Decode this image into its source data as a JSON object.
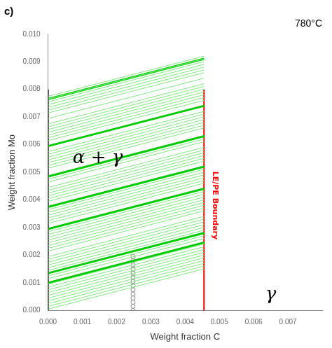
{
  "chart_data": {
    "type": "line",
    "title": "c)",
    "subtitle": "780°C",
    "x_label": "Weight fraction C",
    "y_label": "Weight fraction Mo",
    "xlim": [
      0.0,
      0.008
    ],
    "ylim": [
      0.0,
      0.01
    ],
    "xticks": [
      {
        "value": 0,
        "label": "0.000"
      },
      0.001,
      0.002,
      0.003,
      0.004,
      0.005,
      0.006,
      0.007
    ],
    "yticks": [
      {
        "value": 0,
        "label": "0.000"
      },
      0.001,
      0.002,
      0.003,
      0.004,
      0.005,
      0.006,
      0.007,
      0.008,
      0.009,
      {
        "value": 0.01,
        "label": "0.010"
      }
    ],
    "grid": false,
    "background_color": "#ffffff",
    "annotations": [
      {
        "text": "α + γ",
        "x": 0.00145,
        "y": 0.0055
      },
      {
        "text": "γ",
        "x": 0.0065,
        "y": 0.00055
      },
      {
        "text": "LE/PE Boundary",
        "x": 0.00475,
        "y": 0.0038,
        "color": "#FF0000"
      }
    ],
    "series": [
      {
        "type": "line",
        "line_style": "thin",
        "color": "#80E880",
        "x": [
          0.0,
          0.00455
        ],
        "values": [
          5e-05,
          0.001506
        ]
      },
      {
        "type": "line",
        "line_style": "thin",
        "color": "#80E880",
        "x": [
          0.0,
          0.00455
        ],
        "values": [
          0.00015,
          0.001606
        ]
      },
      {
        "type": "line",
        "line_style": "thin",
        "color": "#80E880",
        "x": [
          0.0,
          0.00455
        ],
        "values": [
          0.00025,
          0.001706
        ]
      },
      {
        "type": "line",
        "line_style": "thin",
        "color": "#80E880",
        "x": [
          0.0,
          0.00455
        ],
        "values": [
          0.00035,
          0.001806
        ]
      },
      {
        "type": "line",
        "line_style": "thin",
        "color": "#80E880",
        "x": [
          0.0,
          0.00455
        ],
        "values": [
          0.00045,
          0.001906
        ]
      },
      {
        "type": "line",
        "line_style": "thin",
        "color": "#80E880",
        "x": [
          0.0,
          0.00455
        ],
        "values": [
          0.00055,
          0.002006
        ]
      },
      {
        "type": "line",
        "line_style": "thin",
        "color": "#80E880",
        "x": [
          0.0,
          0.00455
        ],
        "values": [
          0.00065,
          0.002106
        ]
      },
      {
        "type": "line",
        "line_style": "thin",
        "color": "#80E880",
        "x": [
          0.0,
          0.00455
        ],
        "values": [
          0.00075,
          0.002206
        ]
      },
      {
        "type": "line",
        "line_style": "thin",
        "color": "#80E880",
        "x": [
          0.0,
          0.00455
        ],
        "values": [
          0.00085,
          0.002306
        ]
      },
      {
        "type": "line",
        "line_style": "thin",
        "color": "#80E880",
        "x": [
          0.0,
          0.00455
        ],
        "values": [
          0.00095,
          0.002406
        ]
      },
      {
        "type": "line",
        "line_style": "thin",
        "color": "#80E880",
        "x": [
          0.0,
          0.00455
        ],
        "values": [
          0.00115,
          0.002606
        ]
      },
      {
        "type": "line",
        "line_style": "thin",
        "color": "#80E880",
        "x": [
          0.0,
          0.00455
        ],
        "values": [
          0.00125,
          0.002706
        ]
      },
      {
        "type": "line",
        "line_style": "thin",
        "color": "#80E880",
        "x": [
          0.0,
          0.00455
        ],
        "values": [
          0.00145,
          0.002906
        ]
      },
      {
        "type": "line",
        "line_style": "thin",
        "color": "#80E880",
        "x": [
          0.0,
          0.00455
        ],
        "values": [
          0.00155,
          0.003006
        ]
      },
      {
        "type": "line",
        "line_style": "thin",
        "color": "#80E880",
        "x": [
          0.0,
          0.00455
        ],
        "values": [
          0.00165,
          0.003106
        ]
      },
      {
        "type": "line",
        "line_style": "thin",
        "color": "#80E880",
        "x": [
          0.0,
          0.00455
        ],
        "values": [
          0.00175,
          0.003206
        ]
      },
      {
        "type": "line",
        "line_style": "thin",
        "color": "#80E880",
        "x": [
          0.0,
          0.00455
        ],
        "values": [
          0.00185,
          0.003306
        ]
      },
      {
        "type": "line",
        "line_style": "thin",
        "color": "#80E880",
        "x": [
          0.0,
          0.00455
        ],
        "values": [
          0.00195,
          0.003406
        ]
      },
      {
        "type": "line",
        "line_style": "thin",
        "color": "#80E880",
        "x": [
          0.0,
          0.00455
        ],
        "values": [
          0.00215,
          0.003606
        ]
      },
      {
        "type": "line",
        "line_style": "thin",
        "color": "#80E880",
        "x": [
          0.0,
          0.00455
        ],
        "values": [
          0.00225,
          0.003706
        ]
      },
      {
        "type": "line",
        "line_style": "thin",
        "color": "#80E880",
        "x": [
          0.0,
          0.00455
        ],
        "values": [
          0.00235,
          0.003806
        ]
      },
      {
        "type": "line",
        "line_style": "thin",
        "color": "#80E880",
        "x": [
          0.0,
          0.00455
        ],
        "values": [
          0.00245,
          0.003906
        ]
      },
      {
        "type": "line",
        "line_style": "thin",
        "color": "#80E880",
        "x": [
          0.0,
          0.00455
        ],
        "values": [
          0.00255,
          0.004006
        ]
      },
      {
        "type": "line",
        "line_style": "thin",
        "color": "#80E880",
        "x": [
          0.0,
          0.00455
        ],
        "values": [
          0.00265,
          0.004106
        ]
      },
      {
        "type": "line",
        "line_style": "thin",
        "color": "#80E880",
        "x": [
          0.0,
          0.00455
        ],
        "values": [
          0.00275,
          0.004206
        ]
      },
      {
        "type": "line",
        "line_style": "thin",
        "color": "#80E880",
        "x": [
          0.0,
          0.00455
        ],
        "values": [
          0.00285,
          0.004306
        ]
      },
      {
        "type": "line",
        "line_style": "thin",
        "color": "#80E880",
        "x": [
          0.0,
          0.00455
        ],
        "values": [
          0.00315,
          0.004606
        ]
      },
      {
        "type": "line",
        "line_style": "thin",
        "color": "#80E880",
        "x": [
          0.0,
          0.00455
        ],
        "values": [
          0.00325,
          0.004706
        ]
      },
      {
        "type": "line",
        "line_style": "thin",
        "color": "#80E880",
        "x": [
          0.0,
          0.00455
        ],
        "values": [
          0.00335,
          0.004806
        ]
      },
      {
        "type": "line",
        "line_style": "thin",
        "color": "#80E880",
        "x": [
          0.0,
          0.00455
        ],
        "values": [
          0.00345,
          0.004906
        ]
      },
      {
        "type": "line",
        "line_style": "thin",
        "color": "#80E880",
        "x": [
          0.0,
          0.00455
        ],
        "values": [
          0.00355,
          0.005006
        ]
      },
      {
        "type": "line",
        "line_style": "thin",
        "color": "#80E880",
        "x": [
          0.0,
          0.00455
        ],
        "values": [
          0.00365,
          0.005106
        ]
      },
      {
        "type": "line",
        "line_style": "thin",
        "color": "#80E880",
        "x": [
          0.0,
          0.00455
        ],
        "values": [
          0.00395,
          0.005406
        ]
      },
      {
        "type": "line",
        "line_style": "thin",
        "color": "#80E880",
        "x": [
          0.0,
          0.00455
        ],
        "values": [
          0.00405,
          0.005506
        ]
      },
      {
        "type": "line",
        "line_style": "thin",
        "color": "#80E880",
        "x": [
          0.0,
          0.00455
        ],
        "values": [
          0.00415,
          0.005606
        ]
      },
      {
        "type": "line",
        "line_style": "thin",
        "color": "#80E880",
        "x": [
          0.0,
          0.00455
        ],
        "values": [
          0.00425,
          0.005706
        ]
      },
      {
        "type": "line",
        "line_style": "thin",
        "color": "#80E880",
        "x": [
          0.0,
          0.00455
        ],
        "values": [
          0.00435,
          0.005806
        ]
      },
      {
        "type": "line",
        "line_style": "thin",
        "color": "#80E880",
        "x": [
          0.0,
          0.00455
        ],
        "values": [
          0.00445,
          0.005906
        ]
      },
      {
        "type": "line",
        "line_style": "thin",
        "color": "#80E880",
        "x": [
          0.0,
          0.00455
        ],
        "values": [
          0.00465,
          0.006106
        ]
      },
      {
        "type": "line",
        "line_style": "thin",
        "color": "#80E880",
        "x": [
          0.0,
          0.00455
        ],
        "values": [
          0.00475,
          0.006206
        ]
      },
      {
        "type": "line",
        "line_style": "thin",
        "color": "#80E880",
        "x": [
          0.0,
          0.00455
        ],
        "values": [
          0.00515,
          0.006606
        ]
      },
      {
        "type": "line",
        "line_style": "thin",
        "color": "#80E880",
        "x": [
          0.0,
          0.00455
        ],
        "values": [
          0.00525,
          0.006706
        ]
      },
      {
        "type": "line",
        "line_style": "thin",
        "color": "#80E880",
        "x": [
          0.0,
          0.00455
        ],
        "values": [
          0.00535,
          0.006806
        ]
      },
      {
        "type": "line",
        "line_style": "thin",
        "color": "#80E880",
        "x": [
          0.0,
          0.00455
        ],
        "values": [
          0.00545,
          0.006906
        ]
      },
      {
        "type": "line",
        "line_style": "thin",
        "color": "#80E880",
        "x": [
          0.0,
          0.00455
        ],
        "values": [
          0.00555,
          0.007006
        ]
      },
      {
        "type": "line",
        "line_style": "thin",
        "color": "#80E880",
        "x": [
          0.0,
          0.00455
        ],
        "values": [
          0.00565,
          0.007106
        ]
      },
      {
        "type": "line",
        "line_style": "thin",
        "color": "#80E880",
        "x": [
          0.0,
          0.00455
        ],
        "values": [
          0.00575,
          0.007206
        ]
      },
      {
        "type": "line",
        "line_style": "thin",
        "color": "#80E880",
        "x": [
          0.0,
          0.00455
        ],
        "values": [
          0.00615,
          0.007606
        ]
      },
      {
        "type": "line",
        "line_style": "thin",
        "color": "#80E880",
        "x": [
          0.0,
          0.00455
        ],
        "values": [
          0.00625,
          0.007706
        ]
      },
      {
        "type": "line",
        "line_style": "thin",
        "color": "#80E880",
        "x": [
          0.0,
          0.00455
        ],
        "values": [
          0.00635,
          0.007806
        ]
      },
      {
        "type": "line",
        "line_style": "thin",
        "color": "#80E880",
        "x": [
          0.0,
          0.00455
        ],
        "values": [
          0.00645,
          0.007906
        ]
      },
      {
        "type": "line",
        "line_style": "thin",
        "color": "#80E880",
        "x": [
          0.0,
          0.00455
        ],
        "values": [
          0.00655,
          0.008006
        ]
      },
      {
        "type": "line",
        "line_style": "thin",
        "color": "#80E880",
        "x": [
          0.0,
          0.00455
        ],
        "values": [
          0.00665,
          0.008106
        ]
      },
      {
        "type": "line",
        "line_style": "thin",
        "color": "#80E880",
        "x": [
          0.0,
          0.00455
        ],
        "values": [
          0.00675,
          0.008206
        ]
      },
      {
        "type": "line",
        "line_style": "thin",
        "color": "#80E880",
        "x": [
          0.0,
          0.00455
        ],
        "values": [
          0.00695,
          0.008406
        ]
      },
      {
        "type": "line",
        "line_style": "thin",
        "color": "#80E880",
        "x": [
          0.0,
          0.00455
        ],
        "values": [
          0.00715,
          0.008606
        ]
      },
      {
        "type": "line",
        "line_style": "thin",
        "color": "#80E880",
        "x": [
          0.0,
          0.00455
        ],
        "values": [
          0.00725,
          0.008706
        ]
      },
      {
        "type": "line",
        "line_style": "thin",
        "color": "#80E880",
        "x": [
          0.0,
          0.00455
        ],
        "values": [
          0.00735,
          0.008806
        ]
      },
      {
        "type": "line",
        "line_style": "thin",
        "color": "#80E880",
        "x": [
          0.0,
          0.00455
        ],
        "values": [
          0.00745,
          0.008906
        ]
      },
      {
        "type": "line",
        "line_style": "thin",
        "color": "#80E880",
        "x": [
          0.0,
          0.00455
        ],
        "values": [
          0.00755,
          0.009006
        ]
      },
      {
        "type": "line",
        "line_style": "thin",
        "color": "#80E880",
        "x": [
          0.0,
          0.00455
        ],
        "values": [
          0.00765,
          0.009106
        ]
      },
      {
        "type": "line",
        "line_style": "thin",
        "color": "#80E880",
        "x": [
          0.0,
          0.00455
        ],
        "values": [
          0.00775,
          0.009206
        ]
      },
      {
        "type": "line",
        "line_style": "thick",
        "color": "#00CC00",
        "x": [
          0.0,
          0.00455
        ],
        "values": [
          0.001,
          0.002456
        ]
      },
      {
        "type": "line",
        "line_style": "thick",
        "color": "#00CC00",
        "x": [
          0.0,
          0.00455
        ],
        "values": [
          0.00135,
          0.002806
        ]
      },
      {
        "type": "line",
        "line_style": "thick",
        "color": "#00CC00",
        "x": [
          0.0,
          0.00455
        ],
        "values": [
          0.00295,
          0.004406
        ]
      },
      {
        "type": "line",
        "line_style": "thick",
        "color": "#00CC00",
        "x": [
          0.0,
          0.00455
        ],
        "values": [
          0.00375,
          0.005206
        ]
      },
      {
        "type": "line",
        "line_style": "thick",
        "color": "#00CC00",
        "x": [
          0.0,
          0.00455
        ],
        "values": [
          0.00485,
          0.006306
        ]
      },
      {
        "type": "line",
        "line_style": "thick",
        "color": "#00CC00",
        "x": [
          0.0,
          0.00455
        ],
        "values": [
          0.00595,
          0.007406
        ]
      },
      {
        "type": "line",
        "line_style": "thick",
        "color": "#00CC00",
        "x": [
          0.0,
          0.00455
        ],
        "values": [
          0.00765,
          0.009106
        ]
      },
      {
        "type": "line",
        "line_style": "solid",
        "color": "#000000",
        "x": [
          0.0,
          0.0
        ],
        "values": [
          0.0,
          0.008
        ]
      },
      {
        "type": "line",
        "line_style": "solid",
        "color": "#FF0000",
        "x": [
          0.00455,
          0.00455
        ],
        "values": [
          0.0,
          0.008
        ]
      },
      {
        "type": "scatter",
        "marker": "circle",
        "color": "#888888",
        "x": [
          0.00248,
          0.00248,
          0.00248,
          0.00248,
          0.00248,
          0.00248,
          0.00248,
          0.00248,
          0.00248,
          0.00248,
          0.00248,
          0.00248,
          0.00248,
          0.00248
        ],
        "values": [
          0.0,
          0.00015,
          0.0003,
          0.00045,
          0.0006,
          0.00075,
          0.0009,
          0.00105,
          0.0012,
          0.00135,
          0.0015,
          0.00165,
          0.0018,
          0.00195
        ]
      }
    ]
  }
}
